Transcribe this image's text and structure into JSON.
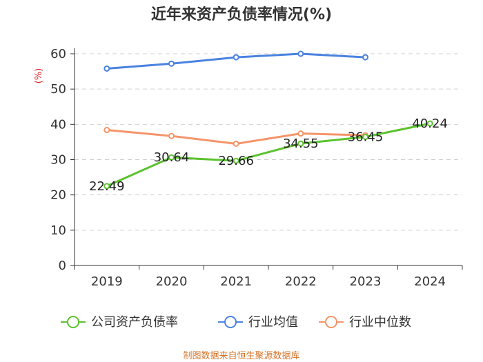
{
  "chart_data": {
    "type": "line",
    "title": "近年来资产负债率情况(%)",
    "xlabel": "",
    "ylabel": "(%)",
    "categories": [
      "2019",
      "2020",
      "2021",
      "2022",
      "2023",
      "2024"
    ],
    "ylim": [
      0,
      60
    ],
    "yticks": [
      0,
      10,
      20,
      30,
      40,
      50,
      60
    ],
    "grid": true,
    "legend_position": "bottom",
    "series": [
      {
        "name": "公司资产负债率",
        "color": "#5cc22e",
        "values": [
          22.49,
          30.64,
          29.66,
          34.55,
          36.45,
          40.24
        ],
        "labels": [
          "22.49",
          "30.64",
          "29.66",
          "34.55",
          "36.45",
          "40.24"
        ]
      },
      {
        "name": "行业均值",
        "color": "#4a82e0",
        "values": [
          55.8,
          57.2,
          59.0,
          60.0,
          59.0,
          null
        ]
      },
      {
        "name": "行业中位数",
        "color": "#f5956a",
        "values": [
          38.4,
          36.7,
          34.5,
          37.4,
          36.9,
          null
        ]
      }
    ],
    "source": "制图数据来自恒生聚源数据库"
  }
}
